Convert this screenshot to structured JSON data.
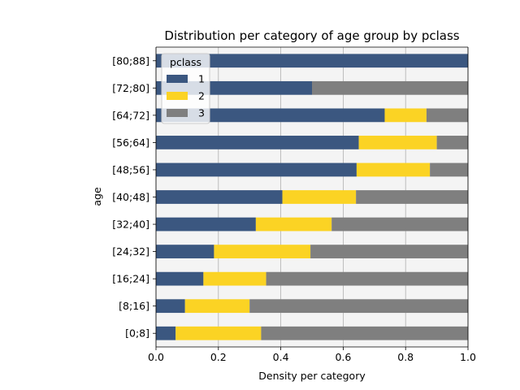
{
  "chart_data": {
    "type": "bar",
    "orientation": "horizontal",
    "stacked": true,
    "title": "Distribution per category of age group by pclass",
    "xlabel": "Density per category",
    "ylabel": "age",
    "xlim": [
      0,
      1
    ],
    "xticks": [
      "0.0",
      "0.2",
      "0.4",
      "0.6",
      "0.8",
      "1.0"
    ],
    "grid": "vertical",
    "legend_placement": "top-left",
    "legend_title": "pclass",
    "categories": [
      "[0;8]",
      "[8;16]",
      "[16;24]",
      "[24;32]",
      "[32;40]",
      "[40;48]",
      "[48;56]",
      "[56;64]",
      "[64;72]",
      "[72;80]",
      "[80;88]"
    ],
    "series": [
      {
        "name": "1",
        "color": "#3b5780",
        "values": [
          0.063,
          0.093,
          0.152,
          0.186,
          0.32,
          0.405,
          0.643,
          0.65,
          0.733,
          0.5,
          1.0
        ]
      },
      {
        "name": "2",
        "color": "#fbd324",
        "values": [
          0.274,
          0.207,
          0.201,
          0.309,
          0.243,
          0.236,
          0.235,
          0.25,
          0.134,
          0.0,
          0.0
        ]
      },
      {
        "name": "3",
        "color": "#7f7f7f",
        "values": [
          0.663,
          0.7,
          0.647,
          0.505,
          0.437,
          0.359,
          0.122,
          0.1,
          0.133,
          0.5,
          0.0
        ]
      }
    ]
  }
}
